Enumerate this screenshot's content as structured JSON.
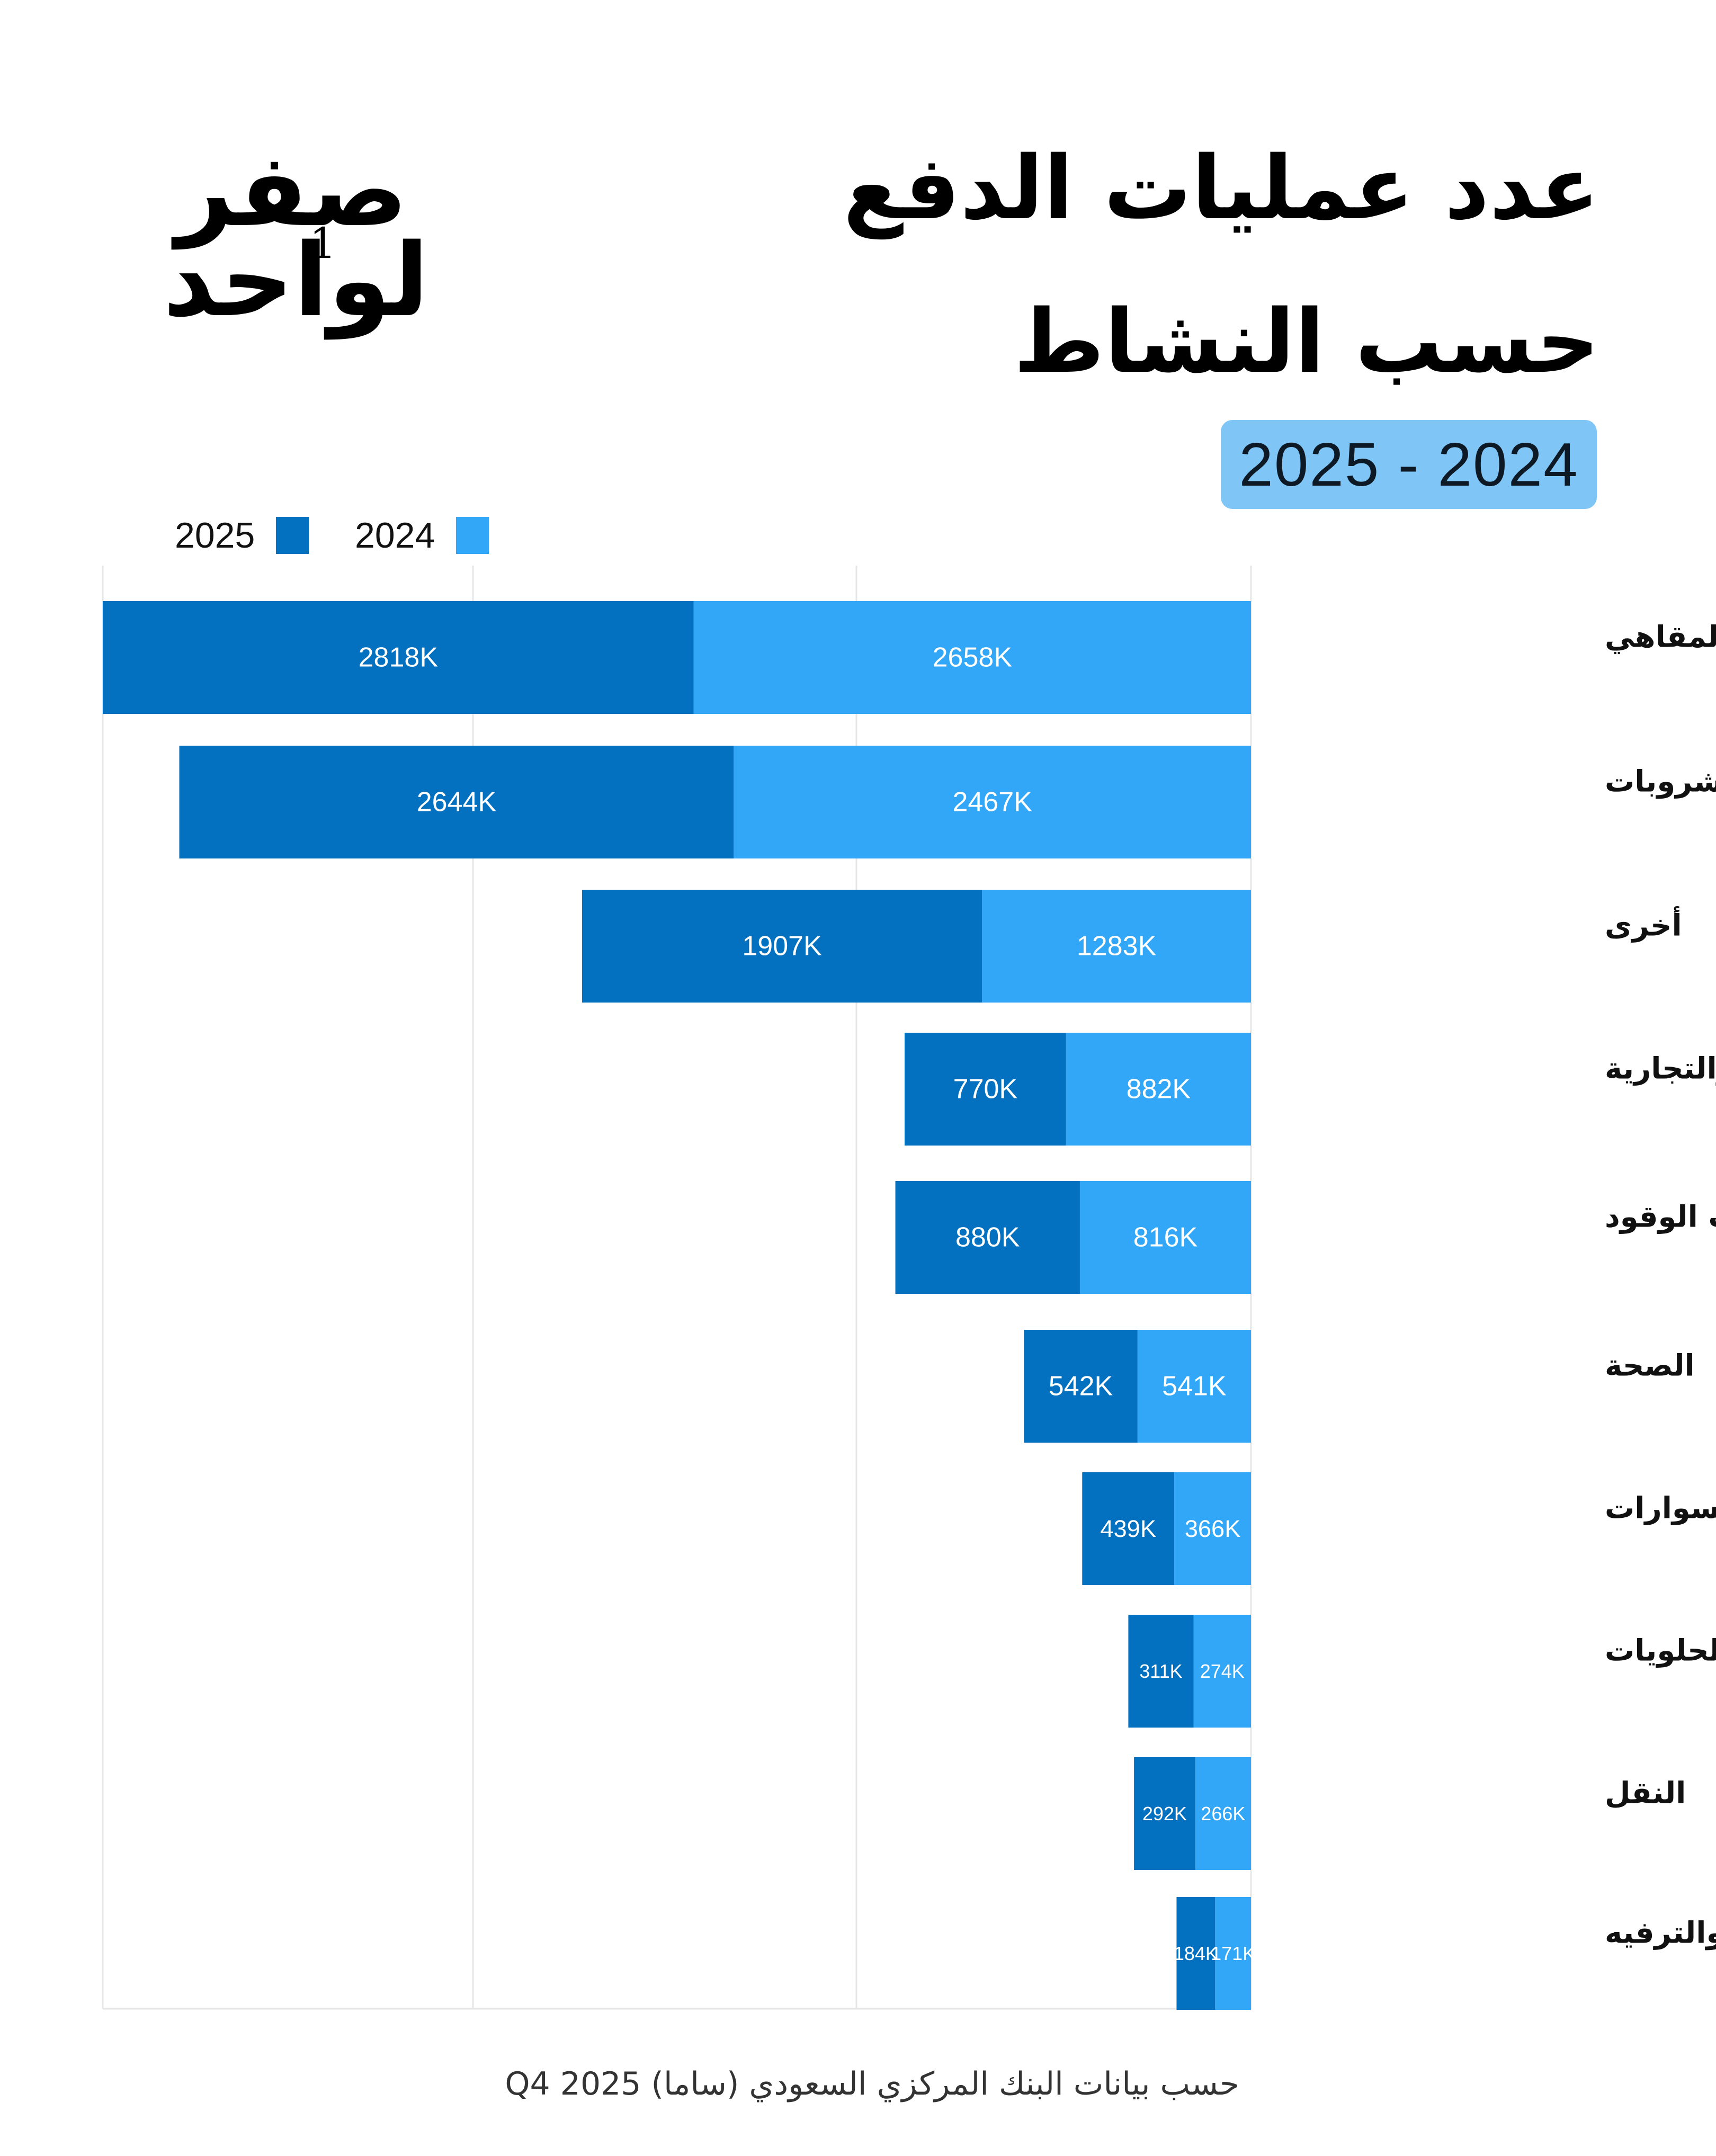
{
  "title": {
    "line1": "عدد عمليات الدفع",
    "line2": "حسب النشاط"
  },
  "logo": {
    "top_word": "صفر",
    "bottom_word": "لواحد",
    "number": "1"
  },
  "year_range": "2025 - 2024",
  "colors": {
    "y2025": "#0370c0",
    "y2024": "#32a7f7",
    "badge": "#7fc6f6",
    "grid": "#e6e6e6"
  },
  "footnote": "حسب بيانات البنك المركزي السعودي (ساما) Q4 2025",
  "chart_data": {
    "type": "bar",
    "orientation": "horizontal-stacked",
    "title": "عدد عمليات الدفع حسب النشاط",
    "legend_position": "top-left",
    "categories": [
      "المطاعم والمقاهي",
      "الأطعمة والمشروبات",
      "أخرى",
      "الخدمات المهنية والتجارية",
      "محطات الوقود",
      "الصحة",
      "الملبوسات والإكسسوارات",
      "المخبوزات والحلويات",
      "النقل",
      "الثقافة والترفيه"
    ],
    "series": [
      {
        "name": "2024",
        "values": [
          2658,
          2467,
          1283,
          882,
          816,
          541,
          366,
          274,
          266,
          171
        ],
        "labels": [
          "2658K",
          "2467K",
          "1283K",
          "882K",
          "816K",
          "541K",
          "366K",
          "274K",
          "266K",
          "171K"
        ]
      },
      {
        "name": "2025",
        "values": [
          2818,
          2644,
          1907,
          770,
          880,
          542,
          439,
          311,
          292,
          184
        ],
        "labels": [
          "2818K",
          "2644K",
          "1907K",
          "770K",
          "880K",
          "542K",
          "439K",
          "311K",
          "292K",
          "184K"
        ]
      }
    ],
    "unit": "K",
    "xlim": [
      0,
      5476
    ],
    "grid": true
  }
}
